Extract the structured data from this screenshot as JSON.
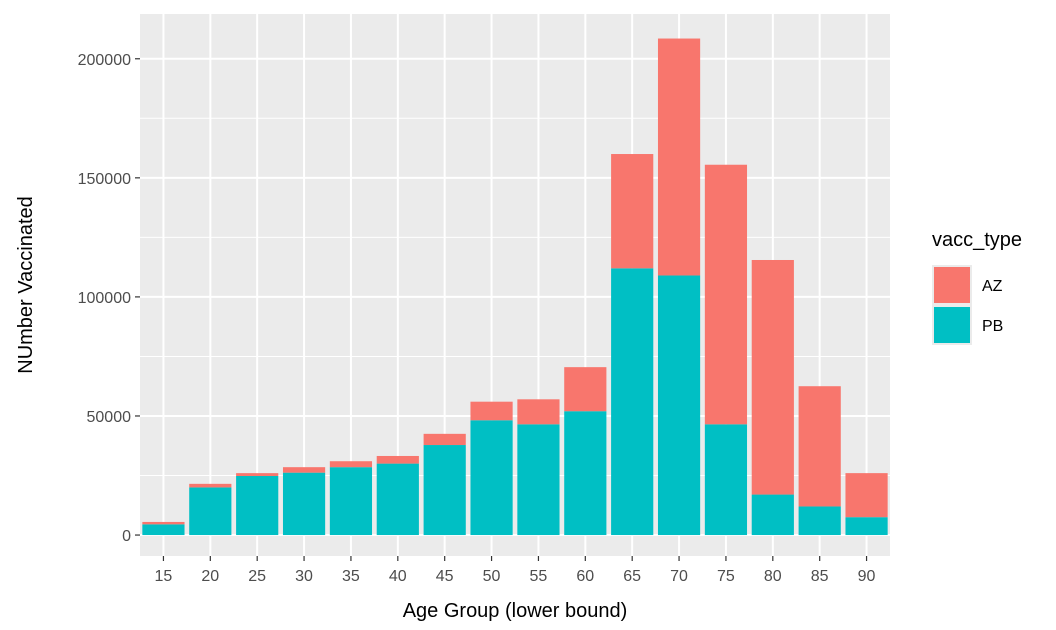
{
  "chart_data": {
    "type": "bar",
    "stacked": true,
    "categories": [
      "15",
      "20",
      "25",
      "30",
      "35",
      "40",
      "45",
      "50",
      "55",
      "60",
      "65",
      "70",
      "75",
      "80",
      "85",
      "90"
    ],
    "series": [
      {
        "name": "PB",
        "color": "#00BFC4",
        "values": [
          4500,
          20000,
          24800,
          26200,
          28500,
          30000,
          37800,
          48200,
          46500,
          52000,
          112000,
          109000,
          46500,
          17000,
          12000,
          7500
        ]
      },
      {
        "name": "AZ",
        "color": "#F8766D",
        "values": [
          1000,
          1500,
          1200,
          2300,
          2500,
          3200,
          4700,
          7800,
          10500,
          18500,
          48000,
          99500,
          109000,
          98500,
          50500,
          18500
        ]
      }
    ],
    "xlabel": "Age Group (lower bound)",
    "ylabel": "NUmber Vaccinated",
    "ylim": [
      -8800,
      218800
    ],
    "yticks": [
      0,
      50000,
      100000,
      150000,
      200000
    ],
    "ytick_labels": [
      "0",
      "50000",
      "100000",
      "150000",
      "200000"
    ],
    "legend": {
      "title": "vacc_type",
      "placement": "right",
      "items": [
        "AZ",
        "PB"
      ]
    },
    "grid": true,
    "panel_background": "#EBEBEB",
    "grid_color": "#FFFFFF"
  }
}
